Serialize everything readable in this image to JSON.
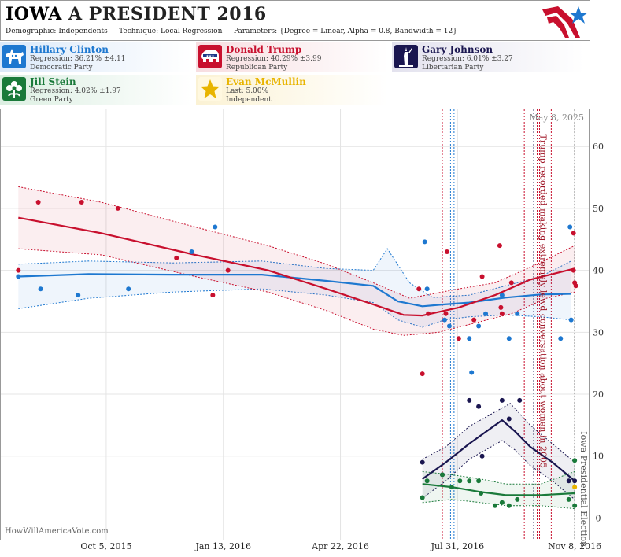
{
  "header": {
    "title_state": "IOWA",
    "title_rest": "A PRESIDENT 2016",
    "demographic_label": "Demographic:",
    "demographic_value": "Independents",
    "technique_label": "Technique:",
    "technique_value": "Local Regression",
    "parameters_label": "Parameters:",
    "parameters_value": "{Degree = Linear, Alpha = 0.8, Bandwidth = 12}"
  },
  "legend": [
    {
      "name": "Hillary Clinton",
      "line2": "Regression: 36.21% ±4.11",
      "line3": "Democratic Party",
      "color": "#1e78d0",
      "icon": "donkey-icon"
    },
    {
      "name": "Donald Trump",
      "line2": "Regression: 40.29% ±3.99",
      "line3": "Republican Party",
      "color": "#c8102e",
      "icon": "elephant-icon"
    },
    {
      "name": "Gary Johnson",
      "line2": "Regression: 6.01% ±3.27",
      "line3": "Libertarian Party",
      "color": "#1a1650",
      "icon": "liberty-statue-icon"
    },
    {
      "name": "Jill Stein",
      "line2": "Regression: 4.02% ±1.97",
      "line3": "Green Party",
      "color": "#1a7a3a",
      "icon": "flower-icon"
    },
    {
      "name": "Evan McMullin",
      "line2": "Last: 5.00%",
      "line3": "Independent",
      "color": "#e8b400",
      "icon": "star-icon"
    }
  ],
  "chart_data": {
    "type": "scatter",
    "date_label": "May 8, 2025",
    "watermark": "HowWillAmericaVote.com",
    "xtick_labels": [
      "Oct 5, 2015",
      "Jan 13, 2016",
      "Apr 22, 2016",
      "Jul 31, 2016",
      "Nov 8, 2016"
    ],
    "xtick_dates": [
      "2015-10-05",
      "2016-01-13",
      "2016-04-22",
      "2016-07-31",
      "2016-11-08"
    ],
    "xlim": [
      "2015-07-07",
      "2016-11-20"
    ],
    "ylim": [
      -3.5,
      66
    ],
    "yticks": [
      0,
      10,
      20,
      30,
      40,
      50,
      60
    ],
    "annotations": [
      {
        "text": "Trump recorded making extremely lewd conversation about women in 2005",
        "date": "2016-10-07",
        "y": 62,
        "color": "#a01828"
      },
      {
        "text": "Iowa Presidential Election",
        "date": "2016-11-08",
        "y": 14,
        "color": "#555555"
      }
    ],
    "event_lines": [
      {
        "date": "2016-07-18",
        "color": "#c8102e"
      },
      {
        "date": "2016-07-25",
        "color": "#1e78d0"
      },
      {
        "date": "2016-07-28",
        "color": "#1e78d0"
      },
      {
        "date": "2016-09-26",
        "color": "#c8102e"
      },
      {
        "date": "2016-10-04",
        "color": "#1a1650"
      },
      {
        "date": "2016-10-07",
        "color": "#c8102e"
      },
      {
        "date": "2016-10-09",
        "color": "#c8102e"
      },
      {
        "date": "2016-10-19",
        "color": "#c8102e"
      },
      {
        "date": "2016-11-08",
        "color": "#555555"
      }
    ],
    "series": [
      {
        "name": "Hillary Clinton",
        "color": "#1e78d0",
        "points": [
          [
            "2015-07-22",
            39
          ],
          [
            "2015-08-10",
            37
          ],
          [
            "2015-09-11",
            36
          ],
          [
            "2015-10-24",
            37
          ],
          [
            "2015-12-17",
            43
          ],
          [
            "2016-01-06",
            47
          ],
          [
            "2016-07-03",
            44.6
          ],
          [
            "2016-07-05",
            37
          ],
          [
            "2016-07-20",
            32
          ],
          [
            "2016-07-24",
            31
          ],
          [
            "2016-08-10",
            29
          ],
          [
            "2016-08-12",
            23.5
          ],
          [
            "2016-08-18",
            31
          ],
          [
            "2016-08-24",
            33
          ],
          [
            "2016-09-07",
            36
          ],
          [
            "2016-09-13",
            29
          ],
          [
            "2016-09-20",
            33
          ],
          [
            "2016-10-27",
            29
          ],
          [
            "2016-11-04",
            47
          ],
          [
            "2016-11-05",
            32
          ]
        ],
        "trend": [
          [
            "2015-07-22",
            39
          ],
          [
            "2015-09-20",
            39.4
          ],
          [
            "2015-12-01",
            39.3
          ],
          [
            "2016-02-15",
            39.3
          ],
          [
            "2016-04-10",
            38.3
          ],
          [
            "2016-05-20",
            37.5
          ],
          [
            "2016-06-10",
            35
          ],
          [
            "2016-07-01",
            34.2
          ],
          [
            "2016-07-20",
            34.5
          ],
          [
            "2016-08-10",
            34.8
          ],
          [
            "2016-09-10",
            35.6
          ],
          [
            "2016-10-10",
            36.1
          ],
          [
            "2016-11-05",
            36.2
          ]
        ],
        "band_upper": [
          [
            "2015-07-22",
            41
          ],
          [
            "2015-09-20",
            41.5
          ],
          [
            "2015-12-01",
            41.2
          ],
          [
            "2016-02-15",
            41.5
          ],
          [
            "2016-04-10",
            40.3
          ],
          [
            "2016-05-20",
            40
          ],
          [
            "2016-06-01",
            43.5
          ],
          [
            "2016-06-20",
            38
          ],
          [
            "2016-07-10",
            35.6
          ],
          [
            "2016-08-10",
            36
          ],
          [
            "2016-09-10",
            37.5
          ],
          [
            "2016-10-10",
            39
          ],
          [
            "2016-11-05",
            41.5
          ]
        ],
        "band_lower": [
          [
            "2015-07-22",
            33.8
          ],
          [
            "2015-09-20",
            35.5
          ],
          [
            "2015-12-01",
            36.5
          ],
          [
            "2016-02-15",
            37
          ],
          [
            "2016-04-10",
            36
          ],
          [
            "2016-05-20",
            34.8
          ],
          [
            "2016-06-10",
            32
          ],
          [
            "2016-07-01",
            30.8
          ],
          [
            "2016-07-20",
            32
          ],
          [
            "2016-08-10",
            32.5
          ],
          [
            "2016-09-10",
            32.8
          ],
          [
            "2016-10-10",
            32.5
          ],
          [
            "2016-11-05",
            32
          ]
        ]
      },
      {
        "name": "Donald Trump",
        "color": "#c8102e",
        "points": [
          [
            "2015-07-22",
            40
          ],
          [
            "2015-08-08",
            51
          ],
          [
            "2015-09-14",
            51
          ],
          [
            "2015-10-15",
            50
          ],
          [
            "2015-12-04",
            42
          ],
          [
            "2016-01-04",
            36
          ],
          [
            "2016-01-17",
            40
          ],
          [
            "2016-06-28",
            37
          ],
          [
            "2016-07-01",
            23.3
          ],
          [
            "2016-07-06",
            33
          ],
          [
            "2016-07-21",
            33
          ],
          [
            "2016-07-22",
            43
          ],
          [
            "2016-08-01",
            29
          ],
          [
            "2016-08-14",
            32
          ],
          [
            "2016-08-21",
            39
          ],
          [
            "2016-09-05",
            44
          ],
          [
            "2016-09-06",
            34
          ],
          [
            "2016-09-07",
            33
          ],
          [
            "2016-09-15",
            38
          ],
          [
            "2016-11-07",
            40
          ],
          [
            "2016-11-07",
            46
          ],
          [
            "2016-11-08",
            38
          ],
          [
            "2016-11-09",
            37.5
          ]
        ],
        "trend": [
          [
            "2015-07-22",
            48.5
          ],
          [
            "2015-10-01",
            46
          ],
          [
            "2015-12-20",
            42.5
          ],
          [
            "2016-02-20",
            40
          ],
          [
            "2016-04-10",
            37
          ],
          [
            "2016-05-20",
            34.5
          ],
          [
            "2016-06-15",
            32.8
          ],
          [
            "2016-07-01",
            32.7
          ],
          [
            "2016-08-01",
            34
          ],
          [
            "2016-09-01",
            36
          ],
          [
            "2016-10-01",
            38.5
          ],
          [
            "2016-11-08",
            40.3
          ]
        ],
        "band_upper": [
          [
            "2015-07-22",
            53.5
          ],
          [
            "2015-10-01",
            51
          ],
          [
            "2015-12-20",
            47
          ],
          [
            "2016-02-20",
            44
          ],
          [
            "2016-04-10",
            41
          ],
          [
            "2016-05-20",
            38
          ],
          [
            "2016-06-20",
            35.5
          ],
          [
            "2016-08-01",
            37
          ],
          [
            "2016-09-01",
            38
          ],
          [
            "2016-10-01",
            40.5
          ],
          [
            "2016-11-08",
            44
          ]
        ],
        "band_lower": [
          [
            "2015-07-22",
            43.5
          ],
          [
            "2015-10-01",
            42.5
          ],
          [
            "2015-12-20",
            39
          ],
          [
            "2016-02-20",
            36.5
          ],
          [
            "2016-04-10",
            33.5
          ],
          [
            "2016-05-20",
            30.5
          ],
          [
            "2016-06-15",
            29.5
          ],
          [
            "2016-07-15",
            30
          ],
          [
            "2016-08-15",
            31.5
          ],
          [
            "2016-09-15",
            33
          ],
          [
            "2016-10-15",
            35.5
          ],
          [
            "2016-11-08",
            36.5
          ]
        ]
      },
      {
        "name": "Gary Johnson",
        "color": "#1a1650",
        "points": [
          [
            "2016-07-01",
            9
          ],
          [
            "2016-07-18",
            7
          ],
          [
            "2016-08-10",
            19
          ],
          [
            "2016-08-18",
            18
          ],
          [
            "2016-08-21",
            10
          ],
          [
            "2016-09-07",
            19
          ],
          [
            "2016-09-13",
            16
          ],
          [
            "2016-09-22",
            19
          ],
          [
            "2016-11-03",
            6
          ],
          [
            "2016-11-08",
            6
          ]
        ],
        "trend": [
          [
            "2016-07-01",
            6.3
          ],
          [
            "2016-07-21",
            9
          ],
          [
            "2016-08-10",
            12
          ],
          [
            "2016-09-07",
            15.8
          ],
          [
            "2016-09-18",
            14
          ],
          [
            "2016-10-01",
            11.5
          ],
          [
            "2016-10-20",
            9
          ],
          [
            "2016-11-08",
            6
          ]
        ],
        "band_upper": [
          [
            "2016-07-01",
            9.5
          ],
          [
            "2016-07-21",
            11.5
          ],
          [
            "2016-08-10",
            14.8
          ],
          [
            "2016-09-14",
            18.5
          ],
          [
            "2016-10-01",
            15
          ],
          [
            "2016-10-20",
            12
          ],
          [
            "2016-11-08",
            9
          ]
        ],
        "band_lower": [
          [
            "2016-07-01",
            3.2
          ],
          [
            "2016-07-21",
            6
          ],
          [
            "2016-08-10",
            9.5
          ],
          [
            "2016-09-07",
            12.5
          ],
          [
            "2016-09-18",
            11
          ],
          [
            "2016-10-01",
            8.5
          ],
          [
            "2016-10-20",
            6
          ],
          [
            "2016-11-08",
            3
          ]
        ]
      },
      {
        "name": "Jill Stein",
        "color": "#1a7a3a",
        "points": [
          [
            "2016-07-01",
            3.3
          ],
          [
            "2016-07-05",
            6
          ],
          [
            "2016-07-18",
            7
          ],
          [
            "2016-07-26",
            5
          ],
          [
            "2016-08-02",
            6
          ],
          [
            "2016-08-10",
            6
          ],
          [
            "2016-08-18",
            6
          ],
          [
            "2016-08-20",
            4
          ],
          [
            "2016-09-01",
            2
          ],
          [
            "2016-09-07",
            2.5
          ],
          [
            "2016-09-13",
            2
          ],
          [
            "2016-09-20",
            3
          ],
          [
            "2016-11-03",
            3
          ],
          [
            "2016-11-08",
            9.3
          ],
          [
            "2016-11-08",
            2
          ]
        ],
        "trend": [
          [
            "2016-07-01",
            5.5
          ],
          [
            "2016-07-26",
            5
          ],
          [
            "2016-08-20",
            4.2
          ],
          [
            "2016-09-10",
            3.7
          ],
          [
            "2016-10-10",
            3.7
          ],
          [
            "2016-11-08",
            4
          ]
        ],
        "band_upper": [
          [
            "2016-07-01",
            7.5
          ],
          [
            "2016-07-26",
            7
          ],
          [
            "2016-08-20",
            6.3
          ],
          [
            "2016-09-10",
            5.5
          ],
          [
            "2016-10-10",
            5.5
          ],
          [
            "2016-11-08",
            7.5
          ]
        ],
        "band_lower": [
          [
            "2016-07-01",
            2.5
          ],
          [
            "2016-07-26",
            3
          ],
          [
            "2016-08-20",
            2.5
          ],
          [
            "2016-09-10",
            2
          ],
          [
            "2016-10-10",
            2
          ],
          [
            "2016-11-08",
            1.5
          ]
        ]
      },
      {
        "name": "Evan McMullin",
        "color": "#e8b400",
        "points": [
          [
            "2016-11-08",
            5
          ]
        ]
      }
    ]
  }
}
